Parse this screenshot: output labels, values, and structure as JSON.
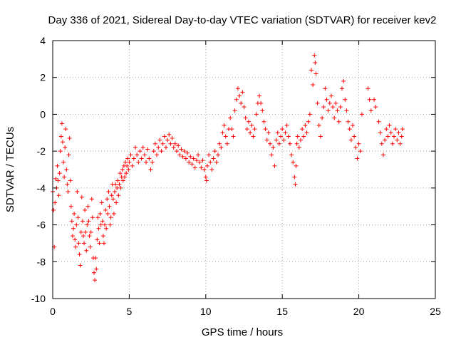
{
  "chart_data": {
    "type": "scatter",
    "title": "Day 336 of 2021, Sidereal Day-to-day VTEC variation (SDTVAR) for receiver kev2",
    "xlabel": "GPS time / hours",
    "ylabel": "SDTVAR / TECUs",
    "xlim": [
      0,
      25
    ],
    "ylim": [
      -10,
      4
    ],
    "xticks": [
      0,
      5,
      10,
      15,
      20,
      25
    ],
    "yticks": [
      -10,
      -8,
      -6,
      -4,
      -2,
      0,
      2,
      4
    ],
    "grid": true,
    "marker": "+",
    "series": [
      {
        "name": "SDTVAR",
        "color": "#ff0000",
        "points": [
          [
            0.0,
            -4.2
          ],
          [
            0.05,
            -5.2
          ],
          [
            0.1,
            -7.2
          ],
          [
            0.15,
            -4.8
          ],
          [
            0.2,
            -3.5
          ],
          [
            0.25,
            -4.0
          ],
          [
            0.3,
            -2.8
          ],
          [
            0.35,
            -3.6
          ],
          [
            0.4,
            -4.4
          ],
          [
            0.45,
            -3.2
          ],
          [
            0.5,
            -2.0
          ],
          [
            0.55,
            -1.2
          ],
          [
            0.6,
            -0.5
          ],
          [
            0.65,
            -1.5
          ],
          [
            0.7,
            -2.6
          ],
          [
            0.75,
            -3.4
          ],
          [
            0.8,
            -1.8
          ],
          [
            0.85,
            -0.8
          ],
          [
            0.9,
            -3.0
          ],
          [
            0.95,
            -3.8
          ],
          [
            1.0,
            -4.2
          ],
          [
            1.05,
            -2.2
          ],
          [
            1.1,
            -1.3
          ],
          [
            1.15,
            -3.6
          ],
          [
            1.2,
            -5.0
          ],
          [
            1.25,
            -5.8
          ],
          [
            1.3,
            -6.6
          ],
          [
            1.35,
            -6.2
          ],
          [
            1.4,
            -5.4
          ],
          [
            1.45,
            -6.8
          ],
          [
            1.5,
            -7.2
          ],
          [
            1.55,
            -6.0
          ],
          [
            1.6,
            -4.2
          ],
          [
            1.65,
            -5.6
          ],
          [
            1.7,
            -7.0
          ],
          [
            1.75,
            -7.6
          ],
          [
            1.8,
            -8.2
          ],
          [
            1.85,
            -6.4
          ],
          [
            1.9,
            -4.5
          ],
          [
            1.95,
            -5.8
          ],
          [
            2.0,
            -6.6
          ],
          [
            2.05,
            -7.0
          ],
          [
            2.1,
            -5.2
          ],
          [
            2.15,
            -6.4
          ],
          [
            2.2,
            -7.4
          ],
          [
            2.25,
            -6.0
          ],
          [
            2.3,
            -5.0
          ],
          [
            2.35,
            -5.8
          ],
          [
            2.4,
            -6.6
          ],
          [
            2.45,
            -7.2
          ],
          [
            2.5,
            -6.4
          ],
          [
            2.55,
            -4.6
          ],
          [
            2.6,
            -5.6
          ],
          [
            2.65,
            -7.8
          ],
          [
            2.7,
            -8.6
          ],
          [
            2.75,
            -9.0
          ],
          [
            2.8,
            -7.8
          ],
          [
            2.85,
            -8.4
          ],
          [
            2.9,
            -6.8
          ],
          [
            2.95,
            -5.6
          ],
          [
            3.0,
            -6.2
          ],
          [
            3.05,
            -7.0
          ],
          [
            3.1,
            -5.4
          ],
          [
            3.15,
            -6.0
          ],
          [
            3.2,
            -4.8
          ],
          [
            3.25,
            -5.8
          ],
          [
            3.3,
            -6.6
          ],
          [
            3.35,
            -7.0
          ],
          [
            3.4,
            -6.0
          ],
          [
            3.45,
            -5.2
          ],
          [
            3.5,
            -6.2
          ],
          [
            3.55,
            -4.6
          ],
          [
            3.6,
            -5.4
          ],
          [
            3.65,
            -4.2
          ],
          [
            3.7,
            -5.0
          ],
          [
            3.75,
            -6.0
          ],
          [
            3.8,
            -5.6
          ],
          [
            3.85,
            -4.4
          ],
          [
            3.9,
            -3.8
          ],
          [
            3.95,
            -4.6
          ],
          [
            4.0,
            -5.4
          ],
          [
            4.05,
            -4.2
          ],
          [
            4.1,
            -3.8
          ],
          [
            4.15,
            -4.8
          ],
          [
            4.2,
            -4.0
          ],
          [
            4.25,
            -3.6
          ],
          [
            4.3,
            -4.4
          ],
          [
            4.35,
            -3.8
          ],
          [
            4.4,
            -3.2
          ],
          [
            4.45,
            -4.0
          ],
          [
            4.5,
            -3.4
          ],
          [
            4.55,
            -3.0
          ],
          [
            4.6,
            -3.6
          ],
          [
            4.65,
            -2.8
          ],
          [
            4.7,
            -3.4
          ],
          [
            4.75,
            -2.6
          ],
          [
            4.8,
            -3.2
          ],
          [
            4.85,
            -2.8
          ],
          [
            4.9,
            -2.4
          ],
          [
            4.95,
            -3.0
          ],
          [
            5.0,
            -2.6
          ],
          [
            5.1,
            -2.2
          ],
          [
            5.2,
            -2.8
          ],
          [
            5.3,
            -2.4
          ],
          [
            5.4,
            -1.8
          ],
          [
            5.5,
            -2.2
          ],
          [
            5.6,
            -2.6
          ],
          [
            5.7,
            -2.0
          ],
          [
            5.8,
            -2.4
          ],
          [
            5.9,
            -1.8
          ],
          [
            6.0,
            -2.2
          ],
          [
            6.1,
            -2.6
          ],
          [
            6.2,
            -1.9
          ],
          [
            6.3,
            -2.4
          ],
          [
            6.4,
            -3.0
          ],
          [
            6.5,
            -2.6
          ],
          [
            6.6,
            -2.0
          ],
          [
            6.7,
            -1.6
          ],
          [
            6.8,
            -2.2
          ],
          [
            6.9,
            -1.8
          ],
          [
            7.0,
            -1.4
          ],
          [
            7.1,
            -2.0
          ],
          [
            7.2,
            -1.6
          ],
          [
            7.3,
            -1.2
          ],
          [
            7.4,
            -1.8
          ],
          [
            7.5,
            -1.4
          ],
          [
            7.6,
            -1.1
          ],
          [
            7.7,
            -1.6
          ],
          [
            7.8,
            -1.3
          ],
          [
            7.9,
            -1.8
          ],
          [
            8.0,
            -1.6
          ],
          [
            8.1,
            -2.0
          ],
          [
            8.2,
            -1.7
          ],
          [
            8.3,
            -2.2
          ],
          [
            8.4,
            -1.9
          ],
          [
            8.5,
            -2.3
          ],
          [
            8.6,
            -2.0
          ],
          [
            8.7,
            -2.4
          ],
          [
            8.8,
            -2.1
          ],
          [
            8.9,
            -2.6
          ],
          [
            9.0,
            -2.3
          ],
          [
            9.1,
            -2.7
          ],
          [
            9.2,
            -2.4
          ],
          [
            9.3,
            -2.9
          ],
          [
            9.4,
            -2.5
          ],
          [
            9.5,
            -2.2
          ],
          [
            9.6,
            -2.6
          ],
          [
            9.7,
            -2.9
          ],
          [
            9.8,
            -2.5
          ],
          [
            9.9,
            -3.0
          ],
          [
            10.0,
            -3.4
          ],
          [
            10.05,
            -3.6
          ],
          [
            10.1,
            -2.8
          ],
          [
            10.2,
            -2.2
          ],
          [
            10.3,
            -2.6
          ],
          [
            10.4,
            -3.0
          ],
          [
            10.5,
            -2.4
          ],
          [
            10.6,
            -2.0
          ],
          [
            10.7,
            -2.6
          ],
          [
            10.8,
            -2.2
          ],
          [
            10.9,
            -1.6
          ],
          [
            11.0,
            -1.8
          ],
          [
            11.1,
            -1.0
          ],
          [
            11.2,
            -0.6
          ],
          [
            11.3,
            -1.2
          ],
          [
            11.4,
            -1.6
          ],
          [
            11.5,
            -0.8
          ],
          [
            11.6,
            -0.2
          ],
          [
            11.7,
            -0.8
          ],
          [
            11.8,
            -1.2
          ],
          [
            11.9,
            0.2
          ],
          [
            12.0,
            0.8
          ],
          [
            12.1,
            1.4
          ],
          [
            12.2,
            1.0
          ],
          [
            12.3,
            0.6
          ],
          [
            12.4,
            1.2
          ],
          [
            12.5,
            0.4
          ],
          [
            12.6,
            -0.2
          ],
          [
            12.7,
            -0.8
          ],
          [
            12.8,
            -0.4
          ],
          [
            12.9,
            -1.0
          ],
          [
            13.0,
            -0.6
          ],
          [
            13.1,
            -1.2
          ],
          [
            13.2,
            -0.8
          ],
          [
            13.3,
            0.0
          ],
          [
            13.4,
            0.6
          ],
          [
            13.5,
            1.0
          ],
          [
            13.6,
            0.6
          ],
          [
            13.7,
            0.2
          ],
          [
            13.8,
            -0.4
          ],
          [
            13.9,
            -0.8
          ],
          [
            14.0,
            -1.4
          ],
          [
            14.1,
            -1.0
          ],
          [
            14.2,
            -1.6
          ],
          [
            14.3,
            -2.2
          ],
          [
            14.4,
            -1.8
          ],
          [
            14.5,
            -2.8
          ],
          [
            14.6,
            -1.4
          ],
          [
            14.7,
            -1.0
          ],
          [
            14.8,
            -1.6
          ],
          [
            14.9,
            -1.2
          ],
          [
            15.0,
            -0.8
          ],
          [
            15.1,
            -1.4
          ],
          [
            15.2,
            -1.0
          ],
          [
            15.3,
            -0.6
          ],
          [
            15.4,
            -1.2
          ],
          [
            15.5,
            -1.6
          ],
          [
            15.6,
            -2.2
          ],
          [
            15.7,
            -2.6
          ],
          [
            15.8,
            -3.4
          ],
          [
            15.85,
            -3.8
          ],
          [
            15.9,
            -2.8
          ],
          [
            15.95,
            -1.6
          ],
          [
            16.0,
            -1.2
          ],
          [
            16.1,
            -1.8
          ],
          [
            16.2,
            -1.4
          ],
          [
            16.3,
            -0.8
          ],
          [
            16.4,
            -1.2
          ],
          [
            16.5,
            -0.6
          ],
          [
            16.6,
            -1.0
          ],
          [
            16.7,
            -0.4
          ],
          [
            16.8,
            0.0
          ],
          [
            16.9,
            2.4
          ],
          [
            17.0,
            1.6
          ],
          [
            17.1,
            3.2
          ],
          [
            17.15,
            2.8
          ],
          [
            17.2,
            2.2
          ],
          [
            17.3,
            0.6
          ],
          [
            17.4,
            -0.6
          ],
          [
            17.5,
            -1.2
          ],
          [
            17.6,
            -0.2
          ],
          [
            17.7,
            0.4
          ],
          [
            17.8,
            1.4
          ],
          [
            17.9,
            0.8
          ],
          [
            18.0,
            0.2
          ],
          [
            18.1,
            0.6
          ],
          [
            18.2,
            1.0
          ],
          [
            18.3,
            0.4
          ],
          [
            18.4,
            -0.2
          ],
          [
            18.5,
            0.6
          ],
          [
            18.6,
            0.2
          ],
          [
            18.7,
            -0.4
          ],
          [
            18.8,
            0.4
          ],
          [
            18.9,
            1.4
          ],
          [
            19.0,
            1.8
          ],
          [
            19.1,
            0.8
          ],
          [
            19.2,
            0.2
          ],
          [
            19.3,
            -0.4
          ],
          [
            19.4,
            -0.8
          ],
          [
            19.5,
            -1.4
          ],
          [
            19.6,
            -0.6
          ],
          [
            19.7,
            -1.2
          ],
          [
            19.8,
            -1.8
          ],
          [
            19.9,
            -2.4
          ],
          [
            20.0,
            -1.6
          ],
          [
            20.1,
            -2.0
          ],
          [
            20.2,
            0.0
          ],
          [
            20.6,
            1.4
          ],
          [
            20.7,
            0.8
          ],
          [
            20.8,
            0.2
          ],
          [
            21.0,
            0.8
          ],
          [
            21.1,
            0.4
          ],
          [
            21.3,
            -0.4
          ],
          [
            21.4,
            -1.0
          ],
          [
            21.5,
            -1.6
          ],
          [
            21.6,
            -2.2
          ],
          [
            21.7,
            -1.4
          ],
          [
            21.8,
            -0.8
          ],
          [
            21.9,
            -1.2
          ],
          [
            22.0,
            -0.6
          ],
          [
            22.1,
            -1.0
          ],
          [
            22.2,
            -1.6
          ],
          [
            22.3,
            -1.2
          ],
          [
            22.4,
            -0.8
          ],
          [
            22.5,
            -1.4
          ],
          [
            22.6,
            -1.0
          ],
          [
            22.7,
            -1.6
          ],
          [
            22.8,
            -1.2
          ],
          [
            22.85,
            -0.8
          ]
        ]
      }
    ]
  }
}
